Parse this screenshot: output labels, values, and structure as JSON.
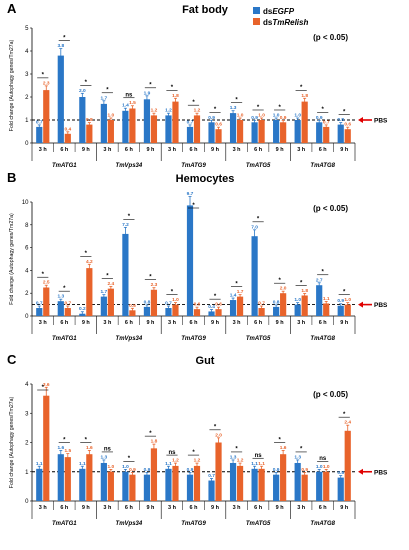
{
  "colors": {
    "egfp": "#2a77c7",
    "relish": "#e8632b",
    "pbs_arrow": "#e00000"
  },
  "legend": {
    "egfp_prefix": "ds",
    "egfp_gene": "EGFP",
    "relish_prefix": "ds",
    "relish_gene": "TmRelish"
  },
  "pbs_label": "PBS",
  "chart_data": [
    {
      "type": "bar",
      "panel": "A",
      "title": "Fat body",
      "pvalue": "(p < 0.05)",
      "ylabel": "Fold change (Autophagy genes/Tm27a)",
      "ylim": [
        0,
        5
      ],
      "yticks": [
        0,
        1,
        2,
        3,
        4,
        5
      ],
      "reference_line": 1,
      "genes": [
        "TmATG1",
        "TmVps34",
        "TmATG9",
        "TmATG5",
        "TmATG8"
      ],
      "timepoints": [
        "3 h",
        "6 h",
        "9 h"
      ],
      "series": [
        {
          "name": "dsEGFP",
          "values": [
            0.7,
            3.8,
            2.0,
            1.7,
            1.4,
            1.9,
            1.2,
            0.7,
            0.9,
            1.3,
            0.9,
            1.0,
            1.0,
            0.9,
            0.8
          ],
          "labels": [
            "0.7",
            "3.8",
            "2.0",
            "1.7",
            "1.4",
            "1.9",
            "1.2",
            "0.7",
            "0.9",
            "1.3",
            "0.9",
            "1.0",
            "1.0",
            "0.9",
            "0.8"
          ]
        },
        {
          "name": "dsTmRelish",
          "values": [
            2.3,
            0.4,
            0.8,
            1.0,
            1.5,
            1.2,
            1.8,
            1.2,
            0.6,
            1.0,
            1.0,
            0.9,
            1.8,
            0.7,
            0.6
          ],
          "labels": [
            "2.3",
            "0.4",
            "0.8",
            "1.0",
            "1.5",
            "1.2",
            "1.8",
            "1.2",
            "0.6",
            "1.0",
            "1.0",
            "0.9",
            "1.8",
            "0.7",
            "0.6"
          ]
        }
      ],
      "significance": [
        "*",
        "*",
        "*",
        "*",
        "ns",
        "*",
        "*",
        "*",
        "*",
        "*",
        "*",
        "*",
        "*",
        "*",
        "*"
      ]
    },
    {
      "type": "bar",
      "panel": "B",
      "title": "Hemocytes",
      "pvalue": "(p < 0.05)",
      "ylabel": "Fold change (Autophagy genes/Tm27a)",
      "ylim": [
        0,
        10
      ],
      "yticks": [
        0,
        2,
        4,
        6,
        8,
        10
      ],
      "reference_line": 1,
      "genes": [
        "TmATG1",
        "TmVps34",
        "TmATG9",
        "TmATG5",
        "TmATG8"
      ],
      "timepoints": [
        "3 h",
        "6 h",
        "9 h"
      ],
      "series": [
        {
          "name": "dsEGFP",
          "values": [
            0.7,
            1.3,
            0.2,
            1.7,
            7.2,
            0.8,
            0.7,
            9.7,
            0.4,
            1.4,
            7.0,
            0.8,
            1.0,
            2.7,
            0.9
          ],
          "labels": [
            "0.7",
            "1.3",
            "0.2",
            "1.7",
            "7.2",
            "0.8",
            "0.7",
            "9.7",
            "0.4",
            "1.4",
            "7.0",
            "0.8",
            "1.0",
            "2.7",
            "0.9"
          ]
        },
        {
          "name": "dsTmRelish",
          "values": [
            2.5,
            0.7,
            4.2,
            2.4,
            0.5,
            2.3,
            1.0,
            0.6,
            0.6,
            1.7,
            0.7,
            2.0,
            1.8,
            1.1,
            1.0
          ],
          "labels": [
            "2.5",
            "0.7",
            "4.2",
            "2.4",
            "0.5",
            "2.3",
            "1.0",
            "0.6",
            "0.6",
            "1.7",
            "0.7",
            "2.0",
            "1.8",
            "1.1",
            "1.0"
          ]
        }
      ],
      "significance": [
        "*",
        "*",
        "*",
        "*",
        "*",
        "*",
        "*",
        "*",
        "*",
        "*",
        "*",
        "*",
        "*",
        "*",
        "*"
      ]
    },
    {
      "type": "bar",
      "panel": "C",
      "title": "Gut",
      "pvalue": "(p < 0.05)",
      "ylabel": "Fold change (Autophagy genes/Tm27a)",
      "ylim": [
        0,
        4
      ],
      "yticks": [
        0,
        1,
        2,
        3,
        4
      ],
      "reference_line": 1,
      "genes": [
        "TmATG1",
        "TmVps34",
        "TmATG9",
        "TmATG5",
        "TmATG8"
      ],
      "timepoints": [
        "3 h",
        "6 h",
        "9 h"
      ],
      "series": [
        {
          "name": "dsEGFP",
          "values": [
            1.1,
            1.6,
            1.1,
            1.3,
            1.0,
            0.9,
            1.1,
            0.9,
            0.7,
            1.3,
            1.1,
            0.9,
            1.3,
            1.0,
            0.8
          ],
          "labels": [
            "1.1",
            "1.6",
            "1.1",
            "1.3",
            "1.0",
            "0.9",
            "1.1",
            "0.9",
            "0.7",
            "1.3",
            "1.1",
            "0.9",
            "1.3",
            "1.0",
            "0.8"
          ]
        },
        {
          "name": "dsTmRelish",
          "values": [
            3.6,
            1.5,
            1.6,
            1.0,
            0.9,
            1.8,
            1.2,
            1.2,
            2.0,
            1.2,
            1.1,
            1.6,
            0.9,
            1.0,
            2.4
          ],
          "labels": [
            "3.6",
            "1.5",
            "1.6",
            "1.0",
            "0.9",
            "1.8",
            "1.2",
            "1.2",
            "2.0",
            "1.2",
            "1.1",
            "1.6",
            "0.9",
            "1.0",
            "2.4"
          ]
        }
      ],
      "significance": [
        "*",
        "*",
        "*",
        "ns",
        "*",
        "*",
        "ns",
        "*",
        "*",
        "*",
        "ns",
        "*",
        "*",
        "ns",
        "*"
      ]
    }
  ]
}
